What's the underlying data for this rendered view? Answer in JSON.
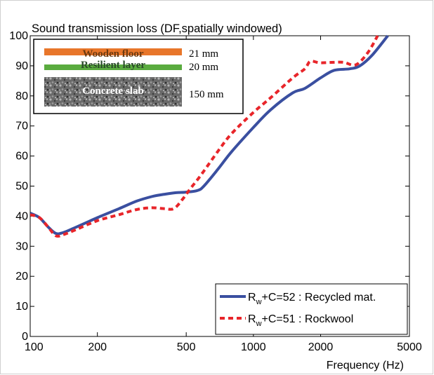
{
  "chart_data": {
    "type": "line",
    "title": "Sound transmission loss (DF,spatially windowed)",
    "xlabel": "Frequency (Hz)",
    "ylabel": "",
    "x_scale": "log",
    "xlim": [
      100,
      5000
    ],
    "ylim": [
      0,
      100
    ],
    "x_ticks": [
      100,
      200,
      500,
      1000,
      2000,
      5000
    ],
    "y_ticks": [
      0,
      10,
      20,
      30,
      40,
      50,
      60,
      70,
      80,
      90,
      100
    ],
    "grid": false,
    "legend_position": "bottom-right",
    "series": [
      {
        "name": "R_w+C=52 : Recycled mat.",
        "legend_main": "R",
        "legend_sub": "w",
        "legend_rest": "+C=52 : Recycled mat.",
        "color": "#3a4fa0",
        "dash": "solid",
        "points": [
          [
            100,
            41
          ],
          [
            110,
            39.5
          ],
          [
            120,
            36.5
          ],
          [
            130,
            34.3
          ],
          [
            140,
            34.5
          ],
          [
            160,
            36.3
          ],
          [
            200,
            39.5
          ],
          [
            250,
            42.5
          ],
          [
            300,
            45
          ],
          [
            350,
            46.5
          ],
          [
            400,
            47.3
          ],
          [
            450,
            47.8
          ],
          [
            500,
            48
          ],
          [
            560,
            48.5
          ],
          [
            600,
            50
          ],
          [
            700,
            56
          ],
          [
            800,
            61.5
          ],
          [
            1000,
            69.5
          ],
          [
            1200,
            75.5
          ],
          [
            1500,
            81
          ],
          [
            1700,
            82.5
          ],
          [
            2000,
            86
          ],
          [
            2300,
            88.5
          ],
          [
            2700,
            89
          ],
          [
            3000,
            90
          ],
          [
            3400,
            93.5
          ],
          [
            4000,
            100
          ]
        ]
      },
      {
        "name": "R_w+C=51 : Rockwool",
        "legend_main": "R",
        "legend_sub": "w",
        "legend_rest": "+C=51 : Rockwool",
        "color": "#e8252a",
        "dash": "dashed",
        "points": [
          [
            100,
            40.5
          ],
          [
            110,
            39.5
          ],
          [
            120,
            36.5
          ],
          [
            130,
            33.5
          ],
          [
            140,
            33.8
          ],
          [
            160,
            35.5
          ],
          [
            200,
            38.5
          ],
          [
            250,
            40.5
          ],
          [
            300,
            42.2
          ],
          [
            350,
            42.8
          ],
          [
            400,
            42.5
          ],
          [
            440,
            42.5
          ],
          [
            480,
            45.5
          ],
          [
            520,
            49
          ],
          [
            560,
            52
          ],
          [
            600,
            55
          ],
          [
            700,
            62
          ],
          [
            800,
            67.5
          ],
          [
            1000,
            74.5
          ],
          [
            1200,
            79.5
          ],
          [
            1500,
            86
          ],
          [
            1700,
            89
          ],
          [
            1800,
            91.5
          ],
          [
            2000,
            91
          ],
          [
            2500,
            91.2
          ],
          [
            2800,
            90.2
          ],
          [
            3000,
            91.3
          ],
          [
            3300,
            95
          ],
          [
            3600,
            100
          ]
        ]
      }
    ],
    "inset": {
      "layers": [
        {
          "label": "Wooden floor",
          "thickness": "21 mm",
          "color": "#e8762a"
        },
        {
          "label": "Resilient layer",
          "thickness": "20 mm",
          "color": "#5aab3f"
        },
        {
          "label": "Concrete slab",
          "thickness": "150 mm",
          "color": "#6f6f6f"
        }
      ]
    }
  }
}
